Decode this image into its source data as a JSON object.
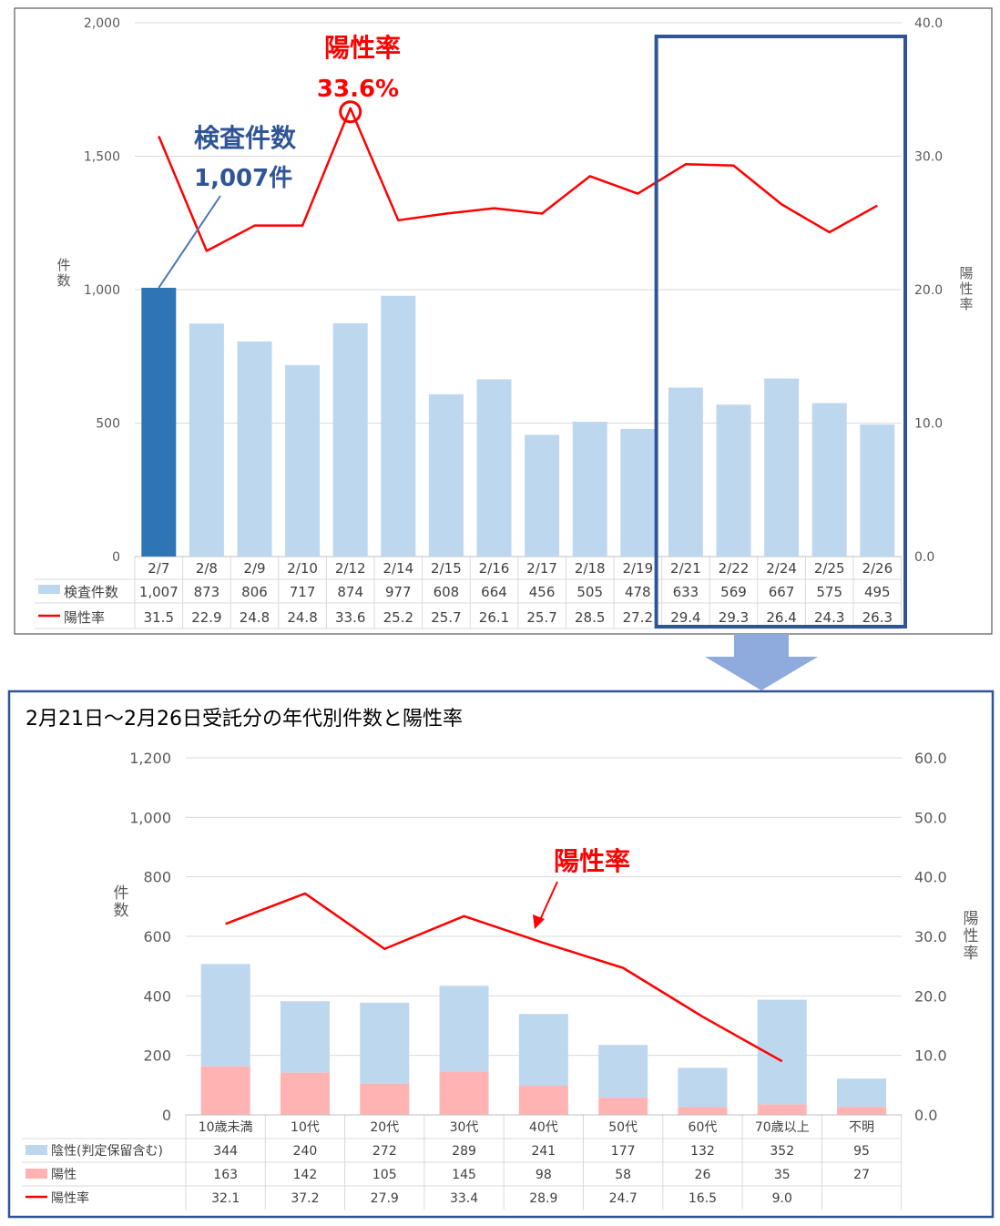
{
  "chart_data": [
    {
      "type": "bar",
      "categories": [
        "2/7",
        "2/8",
        "2/9",
        "2/10",
        "2/12",
        "2/14",
        "2/15",
        "2/16",
        "2/17",
        "2/18",
        "2/19",
        "2/21",
        "2/22",
        "2/24",
        "2/25",
        "2/26"
      ],
      "series": [
        {
          "name": "検査件数",
          "type": "bar",
          "axis": "left",
          "values": [
            1007,
            873,
            806,
            717,
            874,
            977,
            608,
            664,
            456,
            505,
            478,
            633,
            569,
            667,
            575,
            495
          ],
          "color": "#bdd7ee"
        },
        {
          "name": "陽性率",
          "type": "line",
          "axis": "right",
          "values": [
            31.5,
            22.9,
            24.8,
            24.8,
            33.6,
            25.2,
            25.7,
            26.1,
            25.7,
            28.5,
            27.2,
            29.4,
            29.3,
            26.4,
            24.3,
            26.3
          ],
          "color": "#ff0000"
        }
      ],
      "table_values": {
        "counts": [
          "1,007",
          "873",
          "806",
          "717",
          "874",
          "977",
          "608",
          "664",
          "456",
          "505",
          "478",
          "633",
          "569",
          "667",
          "575",
          "495"
        ],
        "rates": [
          "31.5",
          "22.9",
          "24.8",
          "24.8",
          "33.6",
          "25.2",
          "25.7",
          "26.1",
          "25.7",
          "28.5",
          "27.2",
          "29.4",
          "29.3",
          "26.4",
          "24.3",
          "26.3"
        ]
      },
      "highlight_index": 0,
      "highlight_color": "#2e75b6",
      "left_axis": {
        "label": "件数",
        "ticks": [
          "0",
          "500",
          "1,000",
          "1,500",
          "2,000"
        ],
        "tick_values": [
          0,
          500,
          1000,
          1500,
          2000
        ],
        "range": [
          0,
          2000
        ]
      },
      "right_axis": {
        "label": "陽性率",
        "ticks": [
          "0.0",
          "10.0",
          "20.0",
          "30.0",
          "40.0"
        ],
        "tick_values": [
          0,
          10,
          20,
          30,
          40
        ],
        "range": [
          0,
          40
        ]
      },
      "grid": true,
      "annotations": {
        "rate_title": "陽性率",
        "rate_value": "33.6%",
        "count_title": "検査件数",
        "count_value": "1,007件"
      },
      "box_color": "#2f5597"
    },
    {
      "type": "bar",
      "title": "2月21日～2月26日受託分の年代別件数と陽性率",
      "categories": [
        "10歳未満",
        "10代",
        "20代",
        "30代",
        "40代",
        "50代",
        "60代",
        "70歳以上",
        "不明"
      ],
      "series": [
        {
          "name": "陰性(判定保留含む)",
          "type": "bar",
          "stacked": true,
          "axis": "left",
          "values": [
            344,
            240,
            272,
            289,
            241,
            177,
            132,
            352,
            95
          ],
          "color": "#bdd7ee"
        },
        {
          "name": "陽性",
          "type": "bar",
          "stacked": true,
          "axis": "left",
          "values": [
            163,
            142,
            105,
            145,
            98,
            58,
            26,
            35,
            27
          ],
          "color": "#ffb3b3"
        },
        {
          "name": "陽性率",
          "type": "line",
          "axis": "right",
          "values": [
            32.1,
            37.2,
            27.9,
            33.4,
            28.9,
            24.7,
            16.5,
            9.0,
            null
          ],
          "color": "#ff0000"
        }
      ],
      "table_values": {
        "negative": [
          "344",
          "240",
          "272",
          "289",
          "241",
          "177",
          "132",
          "352",
          "95"
        ],
        "positive": [
          "163",
          "142",
          "105",
          "145",
          "98",
          "58",
          "26",
          "35",
          "27"
        ],
        "rates": [
          "32.1",
          "37.2",
          "27.9",
          "33.4",
          "28.9",
          "24.7",
          "16.5",
          "9.0",
          ""
        ]
      },
      "left_axis": {
        "label": "件数",
        "ticks": [
          "0",
          "200",
          "400",
          "600",
          "800",
          "1,000",
          "1,200"
        ],
        "tick_values": [
          0,
          200,
          400,
          600,
          800,
          1000,
          1200
        ],
        "range": [
          0,
          1200
        ]
      },
      "right_axis": {
        "label": "陽性率",
        "ticks": [
          "0.0",
          "10.0",
          "20.0",
          "30.0",
          "40.0",
          "50.0",
          "60.0"
        ],
        "tick_values": [
          0,
          10,
          20,
          30,
          40,
          50,
          60
        ],
        "range": [
          0,
          60
        ]
      },
      "grid": true,
      "annotations": {
        "rate_title": "陽性率"
      },
      "box_color": "#2f5597"
    }
  ],
  "arrow_color": "#8faadc"
}
